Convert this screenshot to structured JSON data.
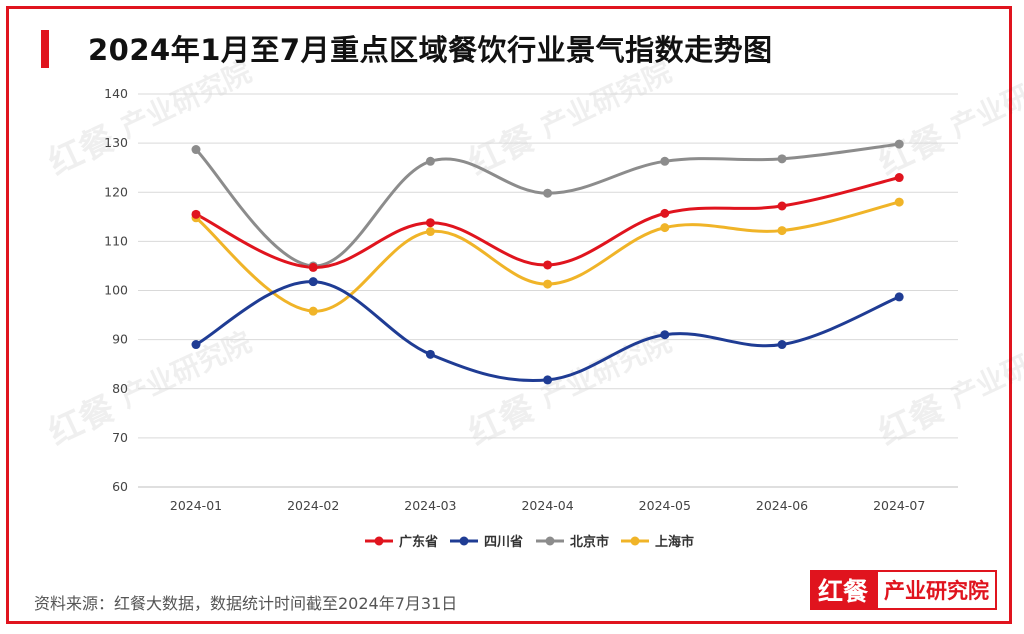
{
  "title": "2024年1月至7月重点区域餐饮行业景气指数走势图",
  "footer": "资料来源：红餐大数据，数据统计时间截至2024年7月31日",
  "logo": {
    "mark": "红餐",
    "text": "产业研究院"
  },
  "watermark": {
    "mark": "红餐",
    "text": "产业研究院"
  },
  "colors": {
    "frame": "#e0141e",
    "grid": "#d9d9d9"
  },
  "chart_data": {
    "type": "line",
    "smooth": true,
    "title": "2024年1月至7月重点区域餐饮行业景气指数走势图",
    "xlabel": "",
    "ylabel": "",
    "categories": [
      "2024-01",
      "2024-02",
      "2024-03",
      "2024-04",
      "2024-05",
      "2024-06",
      "2024-07"
    ],
    "ylim": [
      60,
      140
    ],
    "yticks": [
      60,
      70,
      80,
      90,
      100,
      110,
      120,
      130,
      140
    ],
    "grid": true,
    "legend_position": "bottom-center",
    "series": [
      {
        "name": "广东省",
        "color": "#e0141e",
        "values": [
          115.5,
          104.7,
          113.8,
          105.2,
          115.7,
          117.2,
          123.0
        ]
      },
      {
        "name": "四川省",
        "color": "#1f3c94",
        "values": [
          89.0,
          101.8,
          87.0,
          81.8,
          91.0,
          89.0,
          98.7
        ]
      },
      {
        "name": "北京市",
        "color": "#8c8c8c",
        "values": [
          128.7,
          105.0,
          126.3,
          119.8,
          126.3,
          126.8,
          129.8
        ]
      },
      {
        "name": "上海市",
        "color": "#f0b428",
        "values": [
          114.8,
          95.8,
          112.0,
          101.3,
          112.8,
          112.2,
          118.0
        ]
      }
    ]
  }
}
